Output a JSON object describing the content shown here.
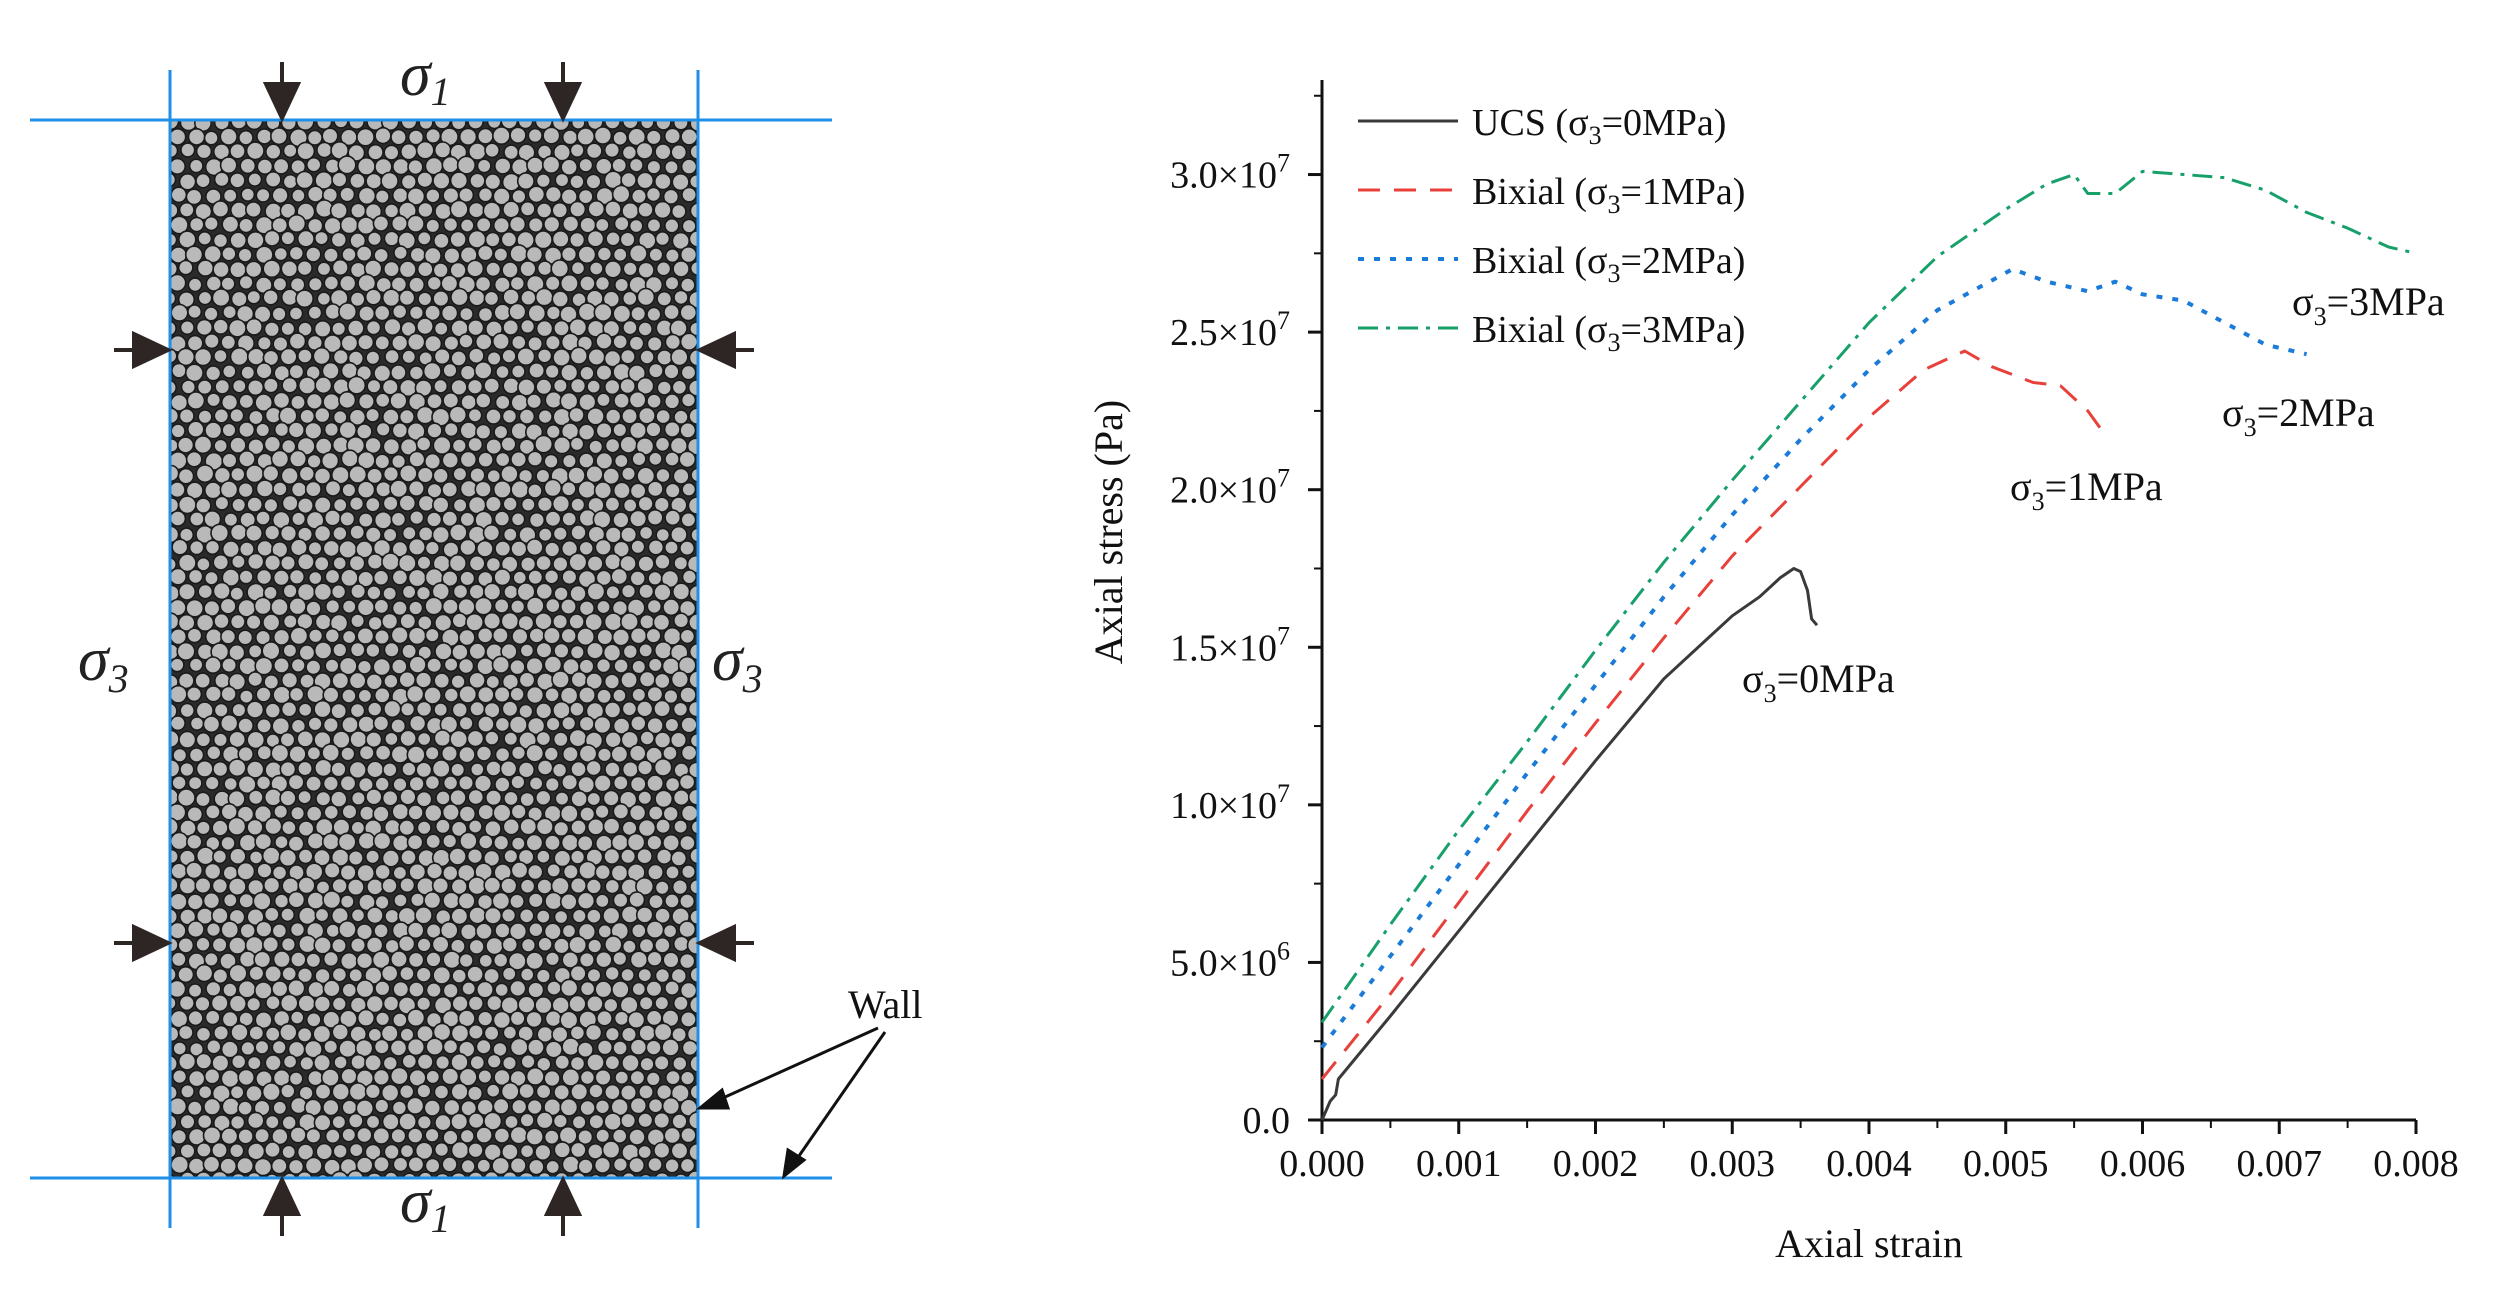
{
  "schematic": {
    "sigma1_top": {
      "base": "σ",
      "sub": "1"
    },
    "sigma1_bottom": {
      "base": "σ",
      "sub": "1"
    },
    "sigma3_left": {
      "base": "σ",
      "sub": "3"
    },
    "sigma3_right": {
      "base": "σ",
      "sub": "3"
    },
    "wall_label": "Wall",
    "colors": {
      "wall": "#1f8fe8",
      "particles_fill": "#b9b9b9",
      "particles_stroke": "#1a1a1a",
      "arrows": "#2d2624"
    }
  },
  "chart_data": {
    "type": "line",
    "title": "",
    "xlabel": "Axial strain",
    "ylabel": "Axial stress (Pa)",
    "xlim": [
      0,
      0.008
    ],
    "ylim": [
      0,
      33000000
    ],
    "x_ticks": [
      {
        "value": 0.0,
        "label": "0.000"
      },
      {
        "value": 0.001,
        "label": "0.001"
      },
      {
        "value": 0.002,
        "label": "0.002"
      },
      {
        "value": 0.003,
        "label": "0.003"
      },
      {
        "value": 0.004,
        "label": "0.004"
      },
      {
        "value": 0.005,
        "label": "0.005"
      },
      {
        "value": 0.006,
        "label": "0.006"
      },
      {
        "value": 0.007,
        "label": "0.007"
      },
      {
        "value": 0.008,
        "label": "0.008"
      }
    ],
    "y_ticks": [
      {
        "value": 0,
        "base": "0.0",
        "exp": ""
      },
      {
        "value": 5000000,
        "base": "5.0×10",
        "exp": "6"
      },
      {
        "value": 10000000,
        "base": "1.0×10",
        "exp": "7"
      },
      {
        "value": 15000000,
        "base": "1.5×10",
        "exp": "7"
      },
      {
        "value": 20000000,
        "base": "2.0×10",
        "exp": "7"
      },
      {
        "value": 25000000,
        "base": "2.5×10",
        "exp": "7"
      },
      {
        "value": 30000000,
        "base": "3.0×10",
        "exp": "7"
      }
    ],
    "legend_position": "top-left",
    "series": [
      {
        "name": "UCS (σ3=0MPa)",
        "legend": {
          "pre": "UCS   (σ",
          "sub": "3",
          "post": "=0MPa)"
        },
        "color": "#3a3a3a",
        "dash": "",
        "x": [
          0,
          6e-05,
          0.0001,
          0.00012,
          0.0005,
          0.001,
          0.0015,
          0.002,
          0.0025,
          0.003,
          0.0032,
          0.00335,
          0.00345,
          0.0035,
          0.00355,
          0.00358,
          0.00362
        ],
        "y": [
          0,
          600000,
          800000,
          1300000,
          3300000,
          6000000,
          8700000,
          11400000,
          14000000,
          16000000,
          16600000,
          17200000,
          17500000,
          17400000,
          16800000,
          15900000,
          15700000
        ]
      },
      {
        "name": "Bixial (σ3=1MPa)",
        "legend": {
          "pre": "Bixial (σ",
          "sub": "3",
          "post": "=1MPa)"
        },
        "color": "#e8403a",
        "dash": "22 14",
        "x": [
          0,
          0.0005,
          0.001,
          0.0015,
          0.002,
          0.0025,
          0.003,
          0.0035,
          0.004,
          0.0044,
          0.0047,
          0.0049,
          0.0052,
          0.0054,
          0.0056,
          0.0057
        ],
        "y": [
          1300000,
          4000000,
          6900000,
          9800000,
          12600000,
          15300000,
          17900000,
          20100000,
          22300000,
          23800000,
          24400000,
          23900000,
          23400000,
          23300000,
          22500000,
          21900000
        ]
      },
      {
        "name": "Bixial (σ3=2MPa)",
        "legend": {
          "pre": "Bixial (σ",
          "sub": "3",
          "post": "=2MPa)"
        },
        "color": "#1b7bd8",
        "dash": "6 10",
        "x": [
          0,
          0.0005,
          0.001,
          0.0015,
          0.002,
          0.0025,
          0.003,
          0.0035,
          0.004,
          0.0045,
          0.00505,
          0.0053,
          0.0056,
          0.0058,
          0.006,
          0.0063,
          0.0066,
          0.0069,
          0.0072
        ],
        "y": [
          2300000,
          5200000,
          8100000,
          11000000,
          13800000,
          16600000,
          19200000,
          21600000,
          23800000,
          25700000,
          27000000,
          26600000,
          26300000,
          26600000,
          26200000,
          26000000,
          25300000,
          24600000,
          24300000
        ]
      },
      {
        "name": "Bixial (σ3=3MPa)",
        "legend": {
          "pre": "Bixial (σ",
          "sub": "3",
          "post": "=3MPa)"
        },
        "color": "#17a06a",
        "dash": "20 8 4 8",
        "x": [
          0,
          0.0005,
          0.001,
          0.0015,
          0.002,
          0.0025,
          0.003,
          0.0035,
          0.004,
          0.0045,
          0.005,
          0.0053,
          0.0055,
          0.0056,
          0.0058,
          0.006,
          0.0063,
          0.0066,
          0.0069,
          0.0072,
          0.0075,
          0.0078,
          0.008
        ],
        "y": [
          3100000,
          6200000,
          9200000,
          12000000,
          14900000,
          17700000,
          20300000,
          22800000,
          25300000,
          27400000,
          28900000,
          29700000,
          30000000,
          29400000,
          29400000,
          30100000,
          30000000,
          29900000,
          29500000,
          28800000,
          28300000,
          27700000,
          27500000
        ]
      }
    ],
    "annotations": [
      {
        "pre": "σ",
        "sub": "3",
        "post": "=0MPa",
        "at": [
          0.003,
          14600000
        ]
      },
      {
        "pre": "σ",
        "sub": "3",
        "post": "=1MPa",
        "at": [
          0.005,
          19800000
        ]
      },
      {
        "pre": "σ",
        "sub": "3",
        "post": "=2MPa",
        "at": [
          0.0066,
          22200000
        ]
      },
      {
        "pre": "σ",
        "sub": "3",
        "post": "=3MPa",
        "at": [
          0.007,
          25600000
        ]
      }
    ]
  }
}
